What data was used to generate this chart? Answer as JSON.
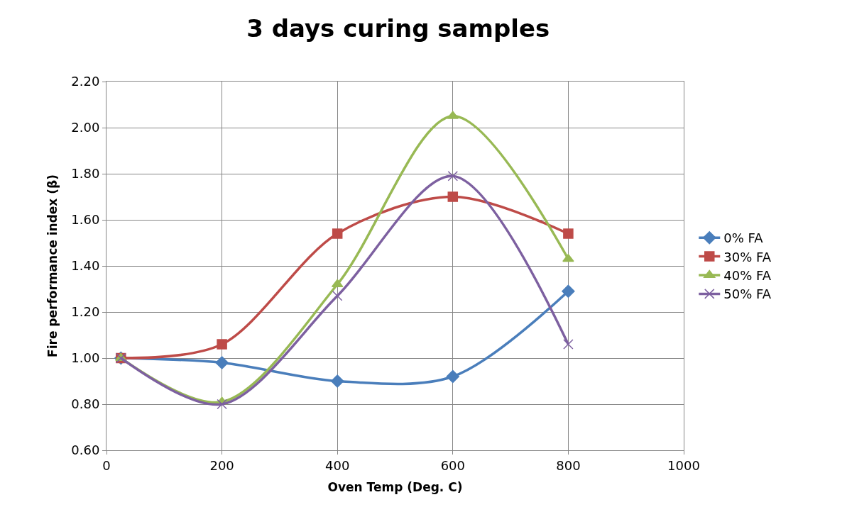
{
  "chart_data": {
    "type": "line",
    "title": "3 days curing samples",
    "xlabel": "Oven Temp (Deg. C)",
    "ylabel": "Fire performance index (β)",
    "x": [
      25,
      200,
      400,
      600,
      800
    ],
    "xlim": [
      0,
      1000
    ],
    "xticks": [
      0,
      200,
      400,
      600,
      800,
      1000
    ],
    "ylim": [
      0.6,
      2.2
    ],
    "yticks": [
      {
        "value": 0.6,
        "label": "0.60"
      },
      {
        "value": 0.8,
        "label": "0.80"
      },
      {
        "value": 1.0,
        "label": "1.00"
      },
      {
        "value": 1.2,
        "label": "1.20"
      },
      {
        "value": 1.4,
        "label": "1.40"
      },
      {
        "value": 1.6,
        "label": "1.60"
      },
      {
        "value": 1.8,
        "label": "1.80"
      },
      {
        "value": 2.0,
        "label": "2.00"
      },
      {
        "value": 2.2,
        "label": "2.20"
      }
    ],
    "grid": true,
    "legend": "right",
    "line_style": "solid",
    "series": [
      {
        "name": "0% FA",
        "color": "#4a7ebb",
        "marker": "diamond",
        "values": [
          1.0,
          0.98,
          0.9,
          0.92,
          1.29
        ]
      },
      {
        "name": "30% FA",
        "color": "#be4b48",
        "marker": "square",
        "values": [
          1.0,
          1.06,
          1.54,
          1.7,
          1.54
        ]
      },
      {
        "name": "40% FA",
        "color": "#98b954",
        "marker": "triangle",
        "values": [
          1.0,
          0.81,
          1.32,
          2.05,
          1.43
        ]
      },
      {
        "name": "50% FA",
        "color": "#7d60a0",
        "marker": "cross",
        "values": [
          1.0,
          0.8,
          1.27,
          1.79,
          1.06
        ]
      }
    ]
  }
}
